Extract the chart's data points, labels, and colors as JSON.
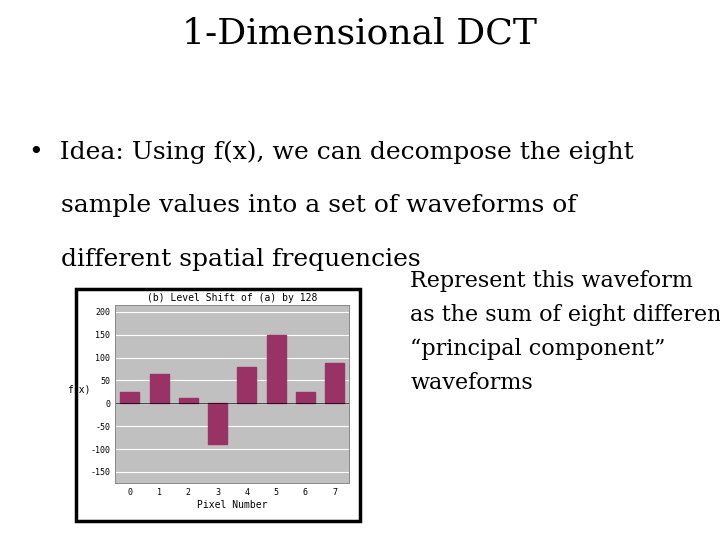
{
  "title": "1-Dimensional DCT",
  "bullet_line1": "•  Idea: Using f(x), we can decompose the eight",
  "bullet_line2": "    sample values into a set of waveforms of",
  "bullet_line3": "    different spatial frequencies",
  "side_text": "Represent this waveform\nas the sum of eight different\n“principal component”\nwaveforms",
  "chart_title": "(b) Level Shift of (a) by 128",
  "chart_xlabel": "Pixel Number",
  "chart_ylabel": "f(x)",
  "bar_values": [
    25,
    65,
    12,
    -90,
    80,
    150,
    25,
    88
  ],
  "bar_color": "#993366",
  "chart_bg_color": "#c0c0c0",
  "ytick_labels": [
    "200",
    "150",
    "100",
    "50",
    "0",
    "-50",
    "-100",
    "-150"
  ],
  "yticks": [
    200,
    150,
    100,
    50,
    0,
    -50,
    -100,
    -150
  ],
  "ylim": [
    -175,
    215
  ],
  "xticks": [
    0,
    1,
    2,
    3,
    4,
    5,
    6,
    7
  ],
  "background_color": "#ffffff",
  "title_fontsize": 26,
  "bullet_fontsize": 18,
  "side_fontsize": 16,
  "chart_title_fontsize": 7,
  "chart_axis_fontsize": 6,
  "chart_label_fontsize": 7
}
